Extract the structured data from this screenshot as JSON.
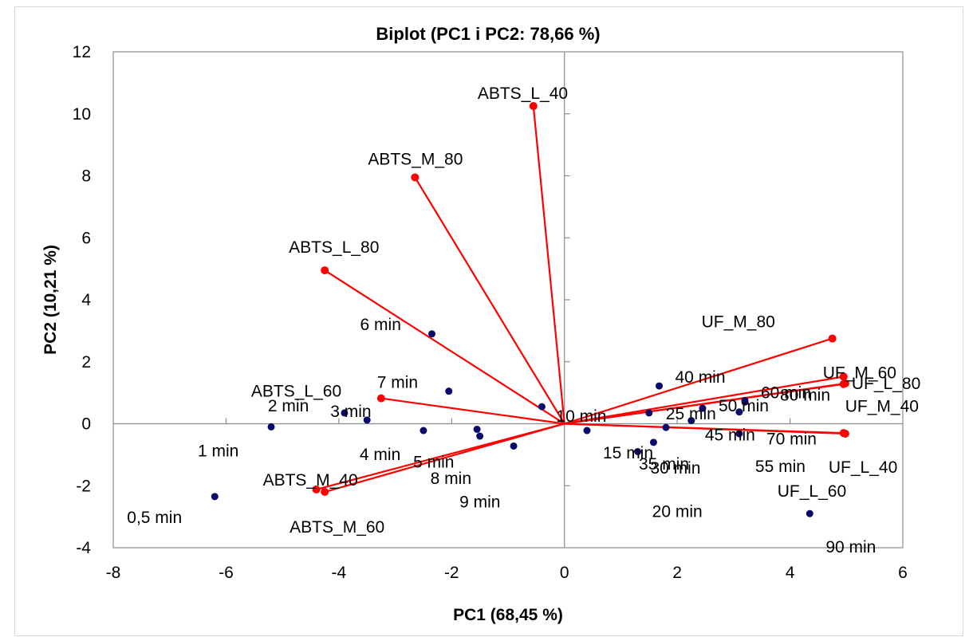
{
  "chart_data": {
    "type": "scatter",
    "title": "Biplot (PC1 i PC2: 78,66 %)",
    "xlabel": "PC1 (68,45 %)",
    "ylabel": "PC2 (10,21 %)",
    "xlim": [
      -8,
      6
    ],
    "ylim": [
      -4,
      12
    ],
    "xticks": [
      -8,
      -6,
      -4,
      -2,
      0,
      2,
      4,
      6
    ],
    "yticks": [
      -4,
      -2,
      0,
      2,
      4,
      6,
      8,
      10,
      12
    ],
    "grid": false,
    "legend": "none",
    "colors": {
      "observations": "#0a0a6b",
      "variables": "#ff0000"
    },
    "observations": [
      {
        "label": "0,5 min",
        "x": -6.2,
        "y": -2.35
      },
      {
        "label": "1 min",
        "x": -5.2,
        "y": -0.1
      },
      {
        "label": "2 min",
        "x": -3.9,
        "y": 0.35
      },
      {
        "label": "3 min",
        "x": -3.5,
        "y": 0.12
      },
      {
        "label": "4 min",
        "x": -2.5,
        "y": -0.22
      },
      {
        "label": "5 min",
        "x": -1.55,
        "y": -0.18
      },
      {
        "label": "6 min",
        "x": -2.35,
        "y": 2.9
      },
      {
        "label": "7 min",
        "x": -2.05,
        "y": 1.05
      },
      {
        "label": "8 min",
        "x": -1.5,
        "y": -0.4
      },
      {
        "label": "9 min",
        "x": -0.9,
        "y": -0.72
      },
      {
        "label": "10 min",
        "x": -0.4,
        "y": 0.55
      },
      {
        "label": "15 min",
        "x": 0.4,
        "y": -0.22
      },
      {
        "label": "20 min",
        "x": 1.3,
        "y": -0.9
      },
      {
        "label": "25 min",
        "x": 1.5,
        "y": 0.35
      },
      {
        "label": "30 min",
        "x": 1.58,
        "y": -0.6
      },
      {
        "label": "35 min",
        "x": 1.8,
        "y": -0.12
      },
      {
        "label": "40 min",
        "x": 1.68,
        "y": 1.22
      },
      {
        "label": "45 min",
        "x": 2.25,
        "y": 0.1
      },
      {
        "label": "50 min",
        "x": 2.45,
        "y": 0.5
      },
      {
        "label": "55 min",
        "x": 3.1,
        "y": -0.32
      },
      {
        "label": "60 min",
        "x": 3.2,
        "y": 0.75
      },
      {
        "label": "70 min",
        "x": 3.1,
        "y": 0.38
      },
      {
        "label": "80 min",
        "x": 3.2,
        "y": 0.7
      },
      {
        "label": "90 min",
        "x": 4.35,
        "y": -2.9
      }
    ],
    "variables": [
      {
        "label": "ABTS_L_40",
        "x": -0.55,
        "y": 10.25
      },
      {
        "label": "ABTS_M_80",
        "x": -2.65,
        "y": 7.95
      },
      {
        "label": "ABTS_L_80",
        "x": -4.25,
        "y": 4.95
      },
      {
        "label": "ABTS_L_60",
        "x": -3.25,
        "y": 0.82
      },
      {
        "label": "ABTS_M_40",
        "x": -4.4,
        "y": -2.12
      },
      {
        "label": "ABTS_M_60",
        "x": -4.25,
        "y": -2.2
      },
      {
        "label": "UF_M_80",
        "x": 4.75,
        "y": 2.75
      },
      {
        "label": "UF_M_60",
        "x": 4.95,
        "y": 1.52
      },
      {
        "label": "UF_L_80",
        "x": 4.98,
        "y": 1.3
      },
      {
        "label": "UF_M_40",
        "x": 4.95,
        "y": 1.28
      },
      {
        "label": "UF_L_40",
        "x": 4.98,
        "y": -0.32
      },
      {
        "label": "UF_L_60",
        "x": 4.95,
        "y": -0.3
      }
    ]
  }
}
